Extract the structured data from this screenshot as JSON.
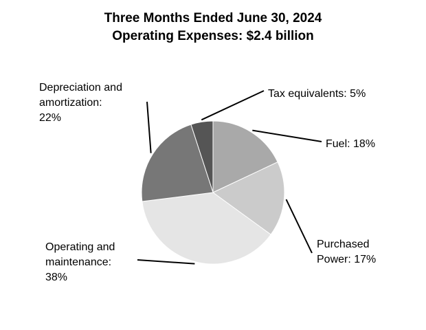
{
  "chart_data": {
    "type": "pie",
    "title": "Three Months Ended June 30, 2024",
    "subtitle": "Operating Expenses: $2.4 billion",
    "slices": [
      {
        "label_lines": [
          "Tax equivalents: 5%"
        ],
        "value": 5,
        "color": "#555555"
      },
      {
        "label_lines": [
          "Fuel: 18%"
        ],
        "value": 18,
        "color": "#a9a9a9"
      },
      {
        "label_lines": [
          "Purchased",
          "Power: 17%"
        ],
        "value": 17,
        "color": "#cbcbcb"
      },
      {
        "label_lines": [
          "Operating and",
          "maintenance:",
          "38%"
        ],
        "value": 38,
        "color": "#e5e5e5"
      },
      {
        "label_lines": [
          "Depreciation and",
          "amortization:",
          "22%"
        ],
        "value": 22,
        "color": "#777777"
      }
    ]
  }
}
